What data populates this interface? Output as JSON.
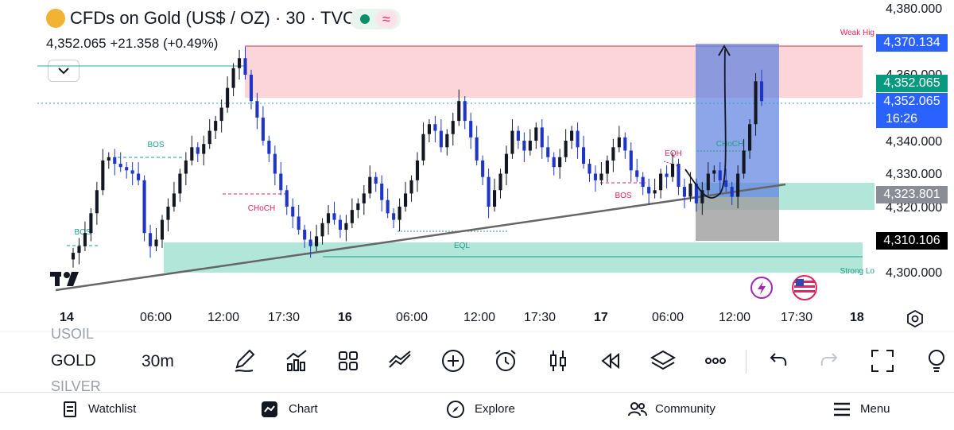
{
  "header": {
    "title": "CFDs on Gold (US$ / OZ) · 30 · TVC",
    "price_line": "4,352.065  +21.358 (+0.49%)"
  },
  "price_axis": {
    "ticks": [
      "4,380.000",
      "4,360.000",
      "4,340.000",
      "4,330.000",
      "4,320.000",
      "4,300.000"
    ],
    "tags": {
      "target": "4,370.134",
      "last_green": "4,352.065",
      "current": "4,352.065",
      "countdown": "16:26",
      "entry": "4,323.801",
      "stop": "4,310.106"
    }
  },
  "time_axis": {
    "labels": [
      "14",
      "06:00",
      "12:00",
      "17:30",
      "16",
      "06:00",
      "12:00",
      "17:30",
      "17",
      "06:00",
      "12:00",
      "17:30",
      "18"
    ]
  },
  "annotations": {
    "weak_high": "Weak Hig",
    "strong_low": "Strong Lo",
    "bos1": "BOS",
    "bos2": "BOS",
    "bos3": "BOS",
    "choch_red": "CHoCH",
    "choch_teal": "CHoCH",
    "eqh": "EQH",
    "eql": "EQL"
  },
  "toolbar": {
    "symbols": [
      "USOIL",
      "GOLD",
      "SILVER"
    ],
    "timeframe": "30m",
    "tools": [
      "pencil-icon",
      "indicators-icon",
      "grid-icon",
      "compare-icon",
      "add-icon",
      "alarm-icon",
      "candles-icon",
      "replay-icon",
      "layers-icon",
      "more-icon",
      "undo-icon",
      "redo-icon",
      "fullscreen-icon",
      "bulb-icon"
    ]
  },
  "nav": {
    "watchlist": "Watchlist",
    "chart": "Chart",
    "explore": "Explore",
    "community": "Community",
    "menu": "Menu"
  },
  "colors": {
    "up": "#131722",
    "down": "#1e35c6",
    "supply_zone": "#fcd5d8",
    "demand_zone": "#b2e6d9",
    "position_profit": "#5c7fe0",
    "position_loss": "#9e9e9e"
  },
  "chart_data": {
    "type": "candlestick",
    "symbol": "CFDs on Gold (US$ / OZ)",
    "timeframe": "30",
    "ylim": [
      4297,
      4383
    ],
    "closes": [
      4306,
      4308,
      4312,
      4318,
      4325,
      4334,
      4335,
      4333,
      4332,
      4331,
      4330,
      4328,
      4312,
      4308,
      4310,
      4316,
      4320,
      4324,
      4330,
      4334,
      4338,
      4336,
      4339,
      4343,
      4346,
      4350,
      4356,
      4362,
      4365,
      4360,
      4352,
      4347,
      4340,
      4336,
      4330,
      4325,
      4320,
      4317,
      4313,
      4310,
      4308,
      4311,
      4315,
      4318,
      4316,
      4313,
      4315,
      4319,
      4321,
      4324,
      4329,
      4327,
      4322,
      4318,
      4316,
      4320,
      4324,
      4328,
      4334,
      4342,
      4345,
      4343,
      4338,
      4342,
      4346,
      4352,
      4346,
      4341,
      4334,
      4329,
      4320,
      4325,
      4330,
      4336,
      4343,
      4340,
      4337,
      4340,
      4344,
      4338,
      4335,
      4332,
      4335,
      4340,
      4343,
      4338,
      4333,
      4330,
      4328,
      4330,
      4334,
      4338,
      4341,
      4337,
      4331,
      4329,
      4326,
      4324,
      4325,
      4330,
      4329,
      4333,
      4326,
      4323,
      4327,
      4321,
      4325,
      4330,
      4331,
      4328,
      4326,
      4323,
      4330,
      4337,
      4345,
      4358,
      4352
    ]
  }
}
